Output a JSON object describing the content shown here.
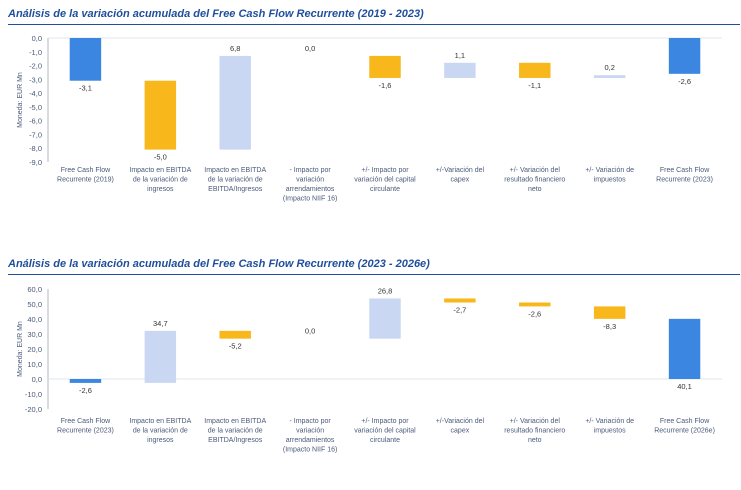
{
  "colors": {
    "total": "#3a86e0",
    "negative": "#f8b71a",
    "positive": "#c9d7f2",
    "title": "#1f4e9c",
    "axis_text": "#4a5a7a",
    "grid": "#d9dee8"
  },
  "chart_data": [
    {
      "type": "bar",
      "subtype": "waterfall",
      "title": "Análisis de la variación acumulada del Free Cash Flow Recurrente (2019 - 2023)",
      "ylabel": "Moneda: EUR Mn",
      "xlabel": "",
      "ylim": [
        -9.0,
        0.0
      ],
      "yticks": [
        "0,0",
        "-1,0",
        "-2,0",
        "-3,0",
        "-4,0",
        "-5,0",
        "-6,0",
        "-7,0",
        "-8,0",
        "-9,0"
      ],
      "categories": [
        [
          "Free Cash Flow",
          "Recurrente (2019)"
        ],
        [
          "Impacto en EBITDA",
          "de la variación de",
          "ingresos"
        ],
        [
          "Impacto en EBITDA",
          "de la variación de",
          "EBITDA/Ingresos"
        ],
        [
          "- Impacto por",
          "variación",
          "arrendamientos",
          "(Impacto NIIF 16)"
        ],
        [
          "+/- Impacto por",
          "variación del capital",
          "circulante"
        ],
        [
          "+/-Variación del",
          "capex"
        ],
        [
          "+/- Variación del",
          "resultado financiero",
          "neto"
        ],
        [
          "+/- Variación de",
          "impuestos"
        ],
        [
          "Free Cash Flow",
          "Recurrente (2023)"
        ]
      ],
      "values": [
        -3.1,
        -5.0,
        6.8,
        0.0,
        -1.6,
        1.1,
        -1.1,
        0.2,
        -2.6
      ],
      "data_labels": [
        "-3,1",
        "-5,0",
        "6,8",
        "0,0",
        "-1,6",
        "1,1",
        "-1,1",
        "0,2",
        "-2,6"
      ],
      "bar_kinds": [
        "total",
        "delta",
        "delta",
        "delta",
        "delta",
        "delta",
        "delta",
        "delta",
        "total"
      ]
    },
    {
      "type": "bar",
      "subtype": "waterfall",
      "title": "Análisis de la variación acumulada del Free Cash Flow Recurrente (2023 - 2026e)",
      "ylabel": "Moneda: EUR Mn",
      "xlabel": "",
      "ylim": [
        -20.0,
        60.0
      ],
      "yticks": [
        "60,0",
        "50,0",
        "40,0",
        "30,0",
        "20,0",
        "10,0",
        "0,0",
        "-10,0",
        "-20,0"
      ],
      "categories": [
        [
          "Free Cash Flow",
          "Recurrente (2023)"
        ],
        [
          "Impacto en EBITDA",
          "de la variación de",
          "ingresos"
        ],
        [
          "Impacto en EBITDA",
          "de la variación de",
          "EBITDA/Ingresos"
        ],
        [
          "- Impacto por",
          "variación",
          "arrendamientos",
          "(Impacto NIIF 16)"
        ],
        [
          "+/- Impacto por",
          "variación del capital",
          "circulante"
        ],
        [
          "+/-Variación del",
          "capex"
        ],
        [
          "+/- Variación del",
          "resultado financiero",
          "neto"
        ],
        [
          "+/- Variación de",
          "impuestos"
        ],
        [
          "Free Cash Flow",
          "Recurrente (2026e)"
        ]
      ],
      "values": [
        -2.6,
        34.7,
        -5.2,
        0.0,
        26.8,
        -2.7,
        -2.6,
        -8.3,
        40.1
      ],
      "data_labels": [
        "-2,6",
        "34,7",
        "-5,2",
        "0,0",
        "26,8",
        "-2,7",
        "-2,6",
        "-8,3",
        "40,1"
      ],
      "bar_kinds": [
        "total",
        "delta",
        "delta",
        "delta",
        "delta",
        "delta",
        "delta",
        "delta",
        "total"
      ]
    }
  ]
}
